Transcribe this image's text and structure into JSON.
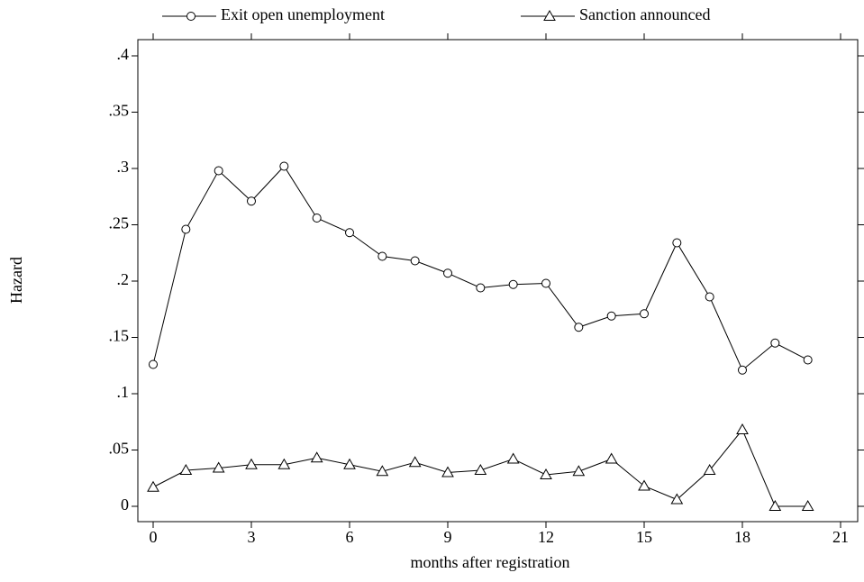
{
  "chart_data": {
    "type": "line",
    "x_label": "months after registration",
    "y_label": "Hazard",
    "x": [
      0,
      1,
      2,
      3,
      4,
      5,
      6,
      7,
      8,
      9,
      10,
      11,
      12,
      13,
      14,
      15,
      16,
      17,
      18,
      19,
      20
    ],
    "series": [
      {
        "name": "Exit open unemployment",
        "color": "#000000",
        "marker": "circle",
        "values": [
          0.126,
          0.246,
          0.298,
          0.271,
          0.302,
          0.256,
          0.243,
          0.222,
          0.218,
          0.207,
          0.194,
          0.197,
          0.198,
          0.159,
          0.169,
          0.171,
          0.234,
          0.186,
          0.121,
          0.145,
          0.13
        ]
      },
      {
        "name": "Sanction announced",
        "color": "#000000",
        "marker": "triangle",
        "values": [
          0.017,
          0.032,
          0.034,
          0.037,
          0.037,
          0.043,
          0.037,
          0.031,
          0.039,
          0.03,
          0.032,
          0.042,
          0.028,
          0.031,
          0.042,
          0.018,
          0.006,
          0.032,
          0.068,
          0,
          0
        ]
      }
    ],
    "xlim": [
      0,
      21
    ],
    "xticks": [
      0,
      3,
      6,
      9,
      12,
      15,
      18,
      21
    ],
    "ylim": [
      0,
      0.4
    ],
    "yticks": [
      0,
      {
        "value": 0.05,
        "label": ".05"
      },
      {
        "value": 0.1,
        "label": ".1"
      },
      {
        "value": 0.15,
        "label": ".15"
      },
      {
        "value": 0.2,
        "label": ".2"
      },
      {
        "value": 0.25,
        "label": ".25"
      },
      {
        "value": 0.3,
        "label": ".3"
      },
      {
        "value": 0.35,
        "label": ".35"
      },
      {
        "value": 0.4,
        "label": ".4"
      }
    ],
    "grid": false,
    "legend": "top"
  }
}
